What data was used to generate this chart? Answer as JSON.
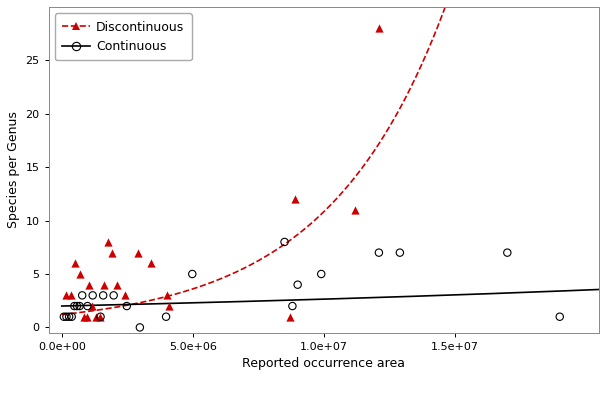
{
  "title": "",
  "xlabel": "Reported occurrence area",
  "ylabel": "Species per Genus",
  "xlim": [
    -500000,
    20500000.0
  ],
  "ylim": [
    -0.5,
    30
  ],
  "xticks": [
    0.0,
    5000000,
    10000000,
    15000000
  ],
  "yticks": [
    0,
    5,
    10,
    15,
    20,
    25
  ],
  "disc_points_x": [
    150000,
    350000,
    500000,
    700000,
    850000,
    950000,
    1050000,
    1150000,
    1300000,
    1450000,
    1600000,
    1750000,
    1900000,
    2100000,
    2400000,
    2900000,
    3400000,
    4000000,
    4100000,
    8700000,
    8900000,
    11200000,
    12100000
  ],
  "disc_points_y": [
    3,
    3,
    6,
    5,
    1,
    1,
    4,
    2,
    1,
    1,
    4,
    8,
    7,
    4,
    3,
    7,
    6,
    3,
    2,
    1,
    12,
    11,
    28
  ],
  "cont_points_x": [
    80000,
    180000,
    280000,
    380000,
    480000,
    580000,
    680000,
    780000,
    980000,
    1180000,
    1480000,
    1580000,
    1980000,
    2480000,
    2980000,
    3980000,
    4980000,
    8500000,
    8800000,
    9000000,
    9900000,
    12100000,
    12900000,
    17000000,
    19000000
  ],
  "cont_points_y": [
    1,
    1,
    1,
    1,
    2,
    2,
    2,
    3,
    2,
    3,
    1,
    3,
    3,
    2,
    0,
    1,
    5,
    8,
    2,
    4,
    5,
    7,
    7,
    7,
    1
  ],
  "disc_color": "#cc0000",
  "cont_color": "#000000",
  "background_color": "#ffffff",
  "disc_fit_a": 1.2,
  "disc_fit_b": 2.2e-07,
  "cont_fit_a": 2.0,
  "cont_fit_b": 2.8e-08
}
